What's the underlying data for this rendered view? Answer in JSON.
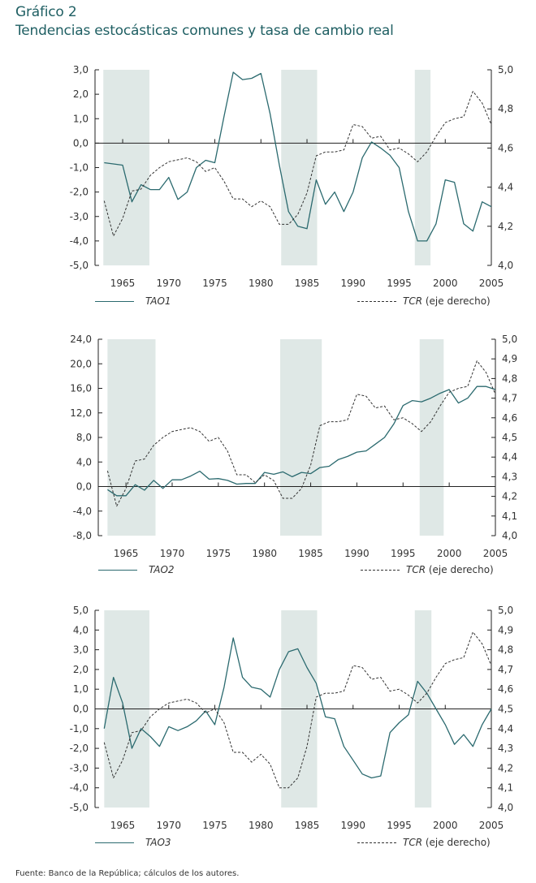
{
  "title": {
    "line1": "Gráfico 2",
    "line2": "Tendencias estocásticas comunes y tasa de cambio real"
  },
  "colors": {
    "title": "#1f5f63",
    "tao_line": "#2b6a6f",
    "tcr_line": "#333333",
    "shade": "#dfe8e6",
    "axis": "#222222"
  },
  "source": "Fuente: Banco de la República; cálculos de los autores.",
  "chart_data": [
    {
      "type": "line",
      "title": "",
      "xlabel": "",
      "ylabel": "",
      "x": [
        1963,
        1964,
        1965,
        1966,
        1967,
        1968,
        1969,
        1970,
        1971,
        1972,
        1973,
        1974,
        1975,
        1976,
        1977,
        1978,
        1979,
        1980,
        1981,
        1982,
        1983,
        1984,
        1985,
        1986,
        1987,
        1988,
        1989,
        1990,
        1991,
        1992,
        1993,
        1994,
        1995,
        1996,
        1997,
        1998,
        1999,
        2000,
        2001,
        2002,
        2003,
        2004,
        2005
      ],
      "xlim": [
        1962,
        2005
      ],
      "x_ticks": [
        "1965",
        "1970",
        "1975",
        "1980",
        "1985",
        "1990",
        "1995",
        "2000",
        "2005"
      ],
      "ylim_left": [
        -5,
        3
      ],
      "y_ticks_left": [
        "3,0",
        "2,0",
        "1,0",
        "0,0",
        "-1,0",
        "-2,0",
        "-3,0",
        "-4,0",
        "-5,0"
      ],
      "ylim_right": [
        4.0,
        5.0
      ],
      "y_ticks_right": [
        "5,0",
        "4,8",
        "4,6",
        "4,4",
        "4,2",
        "4,0"
      ],
      "shaded_periods": [
        [
          1962.9,
          1967.9
        ],
        [
          1982.2,
          1986.1
        ],
        [
          1996.7,
          1998.4
        ]
      ],
      "series": [
        {
          "name": "TAO1",
          "axis": "left",
          "style": "solid",
          "values": [
            -0.8,
            -0.85,
            -0.9,
            -2.4,
            -1.7,
            -1.9,
            -1.9,
            -1.4,
            -2.3,
            -2.0,
            -1.0,
            -0.7,
            -0.8,
            1.1,
            2.9,
            2.6,
            2.65,
            2.85,
            1.2,
            -0.9,
            -2.8,
            -3.4,
            -3.5,
            -1.5,
            -2.5,
            -2.0,
            -2.8,
            -2.0,
            -0.6,
            0.05,
            -0.2,
            -0.5,
            -1.0,
            -2.8,
            -4.0,
            -4.0,
            -3.3,
            -1.5,
            -1.6,
            -3.3,
            -3.6,
            -2.4,
            -2.6
          ]
        },
        {
          "name": "TCR (eje derecho)",
          "axis": "right",
          "style": "dashed",
          "values": [
            4.33,
            4.15,
            4.24,
            4.38,
            4.39,
            4.46,
            4.5,
            4.53,
            4.54,
            4.55,
            4.53,
            4.48,
            4.5,
            4.43,
            4.34,
            4.34,
            4.3,
            4.33,
            4.3,
            4.21,
            4.21,
            4.26,
            4.37,
            4.56,
            4.58,
            4.58,
            4.59,
            4.72,
            4.71,
            4.65,
            4.66,
            4.59,
            4.6,
            4.57,
            4.53,
            4.58,
            4.66,
            4.73,
            4.75,
            4.76,
            4.89,
            4.83,
            4.72
          ]
        }
      ],
      "legend": {
        "left": "TAO1",
        "right_italic": "TCR",
        "right_plain": " (eje derecho)",
        "position": "bottom"
      }
    },
    {
      "type": "line",
      "title": "",
      "xlabel": "",
      "ylabel": "",
      "x": [
        1963,
        1964,
        1965,
        1966,
        1967,
        1968,
        1969,
        1970,
        1971,
        1972,
        1973,
        1974,
        1975,
        1976,
        1977,
        1978,
        1979,
        1980,
        1981,
        1982,
        1983,
        1984,
        1985,
        1986,
        1987,
        1988,
        1989,
        1990,
        1991,
        1992,
        1993,
        1994,
        1995,
        1996,
        1997,
        1998,
        1999,
        2000,
        2001,
        2002,
        2003,
        2004,
        2005
      ],
      "xlim": [
        1962,
        2005
      ],
      "x_ticks": [
        "1965",
        "1970",
        "1975",
        "1980",
        "1985",
        "1990",
        "1995",
        "2000",
        "2005"
      ],
      "ylim_left": [
        -8,
        24
      ],
      "y_ticks_left": [
        "24,0",
        "20,0",
        "16,0",
        "12,0",
        "8,0",
        "4,0",
        "0,0",
        "-4,0",
        "-8,0"
      ],
      "ylim_right": [
        4.0,
        5.0
      ],
      "y_ticks_right": [
        "5,0",
        "4,9",
        "4,8",
        "4,7",
        "4,6",
        "4,5",
        "4,4",
        "4,3",
        "4,2",
        "4,1",
        "4,0"
      ],
      "shaded_periods": [
        [
          1963.0,
          1968.2
        ],
        [
          1981.7,
          1986.2
        ],
        [
          1996.8,
          1999.4
        ]
      ],
      "series": [
        {
          "name": "TAO2",
          "axis": "left",
          "style": "solid",
          "values": [
            -0.5,
            -1.5,
            -1.5,
            0.3,
            -0.6,
            1.0,
            -0.3,
            1.1,
            1.1,
            1.7,
            2.5,
            1.2,
            1.3,
            1.0,
            0.4,
            0.5,
            0.5,
            2.3,
            2.0,
            2.4,
            1.6,
            2.3,
            2.1,
            3.1,
            3.3,
            4.4,
            4.9,
            5.6,
            5.8,
            6.9,
            8.0,
            10.2,
            13.2,
            14.0,
            13.8,
            14.4,
            15.2,
            15.8,
            13.6,
            14.4,
            16.3,
            16.3,
            15.8
          ]
        },
        {
          "name": "TCR (eje derecho)",
          "axis": "right",
          "style": "dashed",
          "values": [
            4.33,
            4.15,
            4.24,
            4.38,
            4.39,
            4.46,
            4.5,
            4.53,
            4.54,
            4.55,
            4.53,
            4.48,
            4.5,
            4.43,
            4.31,
            4.31,
            4.27,
            4.31,
            4.28,
            4.19,
            4.19,
            4.24,
            4.36,
            4.56,
            4.58,
            4.58,
            4.59,
            4.72,
            4.71,
            4.65,
            4.66,
            4.59,
            4.6,
            4.57,
            4.53,
            4.58,
            4.66,
            4.73,
            4.75,
            4.76,
            4.89,
            4.83,
            4.72
          ]
        }
      ],
      "legend": {
        "left": "TAO2",
        "right_italic": "TCR",
        "right_plain": " (eje derecho)",
        "position": "bottom"
      }
    },
    {
      "type": "line",
      "title": "",
      "xlabel": "",
      "ylabel": "",
      "x": [
        1963,
        1964,
        1965,
        1966,
        1967,
        1968,
        1969,
        1970,
        1971,
        1972,
        1973,
        1974,
        1975,
        1976,
        1977,
        1978,
        1979,
        1980,
        1981,
        1982,
        1983,
        1984,
        1985,
        1986,
        1987,
        1988,
        1989,
        1990,
        1991,
        1992,
        1993,
        1994,
        1995,
        1996,
        1997,
        1998,
        1999,
        2000,
        2001,
        2002,
        2003,
        2004,
        2005
      ],
      "xlim": [
        1962,
        2005
      ],
      "x_ticks": [
        "1965",
        "1970",
        "1975",
        "1980",
        "1985",
        "1990",
        "1995",
        "2000",
        "2005"
      ],
      "ylim_left": [
        -5,
        5
      ],
      "y_ticks_left": [
        "5,0",
        "4,0",
        "3,0",
        "2,0",
        "1,0",
        "0,0",
        "-1,0",
        "-2,0",
        "-3,0",
        "-4,0",
        "-5,0"
      ],
      "ylim_right": [
        4.0,
        5.0
      ],
      "y_ticks_right": [
        "5,0",
        "4,9",
        "4,8",
        "4,7",
        "4,6",
        "4,5",
        "4,4",
        "4,3",
        "4,2",
        "4,1",
        "4,0"
      ],
      "shaded_periods": [
        [
          1963.0,
          1967.9
        ],
        [
          1982.2,
          1986.1
        ],
        [
          1996.7,
          1998.5
        ]
      ],
      "series": [
        {
          "name": "TAO3",
          "axis": "left",
          "style": "solid",
          "values": [
            -1.0,
            1.6,
            0.3,
            -2.0,
            -1.0,
            -1.4,
            -1.9,
            -0.9,
            -1.1,
            -0.9,
            -0.6,
            -0.1,
            -0.8,
            1.1,
            3.6,
            1.6,
            1.1,
            1.0,
            0.6,
            2.0,
            2.9,
            3.05,
            2.1,
            1.3,
            -0.4,
            -0.5,
            -1.9,
            -2.6,
            -3.3,
            -3.5,
            -3.4,
            -1.2,
            -0.7,
            -0.3,
            1.4,
            0.8,
            0.0,
            -0.8,
            -1.8,
            -1.3,
            -1.9,
            -0.8,
            0.0
          ]
        },
        {
          "name": "TCR (eje derecho)",
          "axis": "right",
          "style": "dashed",
          "values": [
            4.33,
            4.15,
            4.24,
            4.38,
            4.39,
            4.46,
            4.5,
            4.53,
            4.54,
            4.55,
            4.53,
            4.48,
            4.5,
            4.43,
            4.28,
            4.28,
            4.23,
            4.27,
            4.22,
            4.1,
            4.1,
            4.15,
            4.31,
            4.56,
            4.58,
            4.58,
            4.59,
            4.72,
            4.71,
            4.65,
            4.66,
            4.59,
            4.6,
            4.57,
            4.53,
            4.58,
            4.66,
            4.73,
            4.75,
            4.76,
            4.89,
            4.83,
            4.72
          ]
        }
      ],
      "legend": {
        "left": "TAO3",
        "right_italic": "TCR",
        "right_plain": " (eje derecho)",
        "position": "bottom"
      }
    }
  ]
}
